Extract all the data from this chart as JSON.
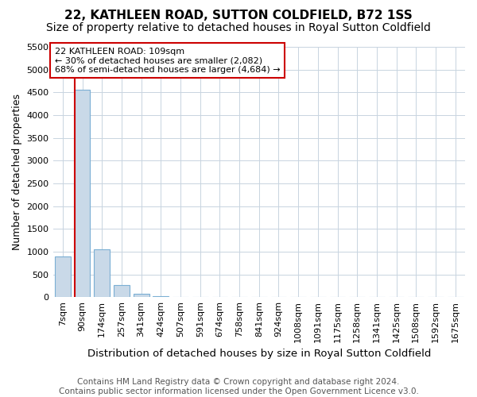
{
  "title": "22, KATHLEEN ROAD, SUTTON COLDFIELD, B72 1SS",
  "subtitle": "Size of property relative to detached houses in Royal Sutton Coldfield",
  "xlabel": "Distribution of detached houses by size in Royal Sutton Coldfield",
  "ylabel": "Number of detached properties",
  "footer_line1": "Contains HM Land Registry data © Crown copyright and database right 2024.",
  "footer_line2": "Contains public sector information licensed under the Open Government Licence v3.0.",
  "categories": [
    "7sqm",
    "90sqm",
    "174sqm",
    "257sqm",
    "341sqm",
    "424sqm",
    "507sqm",
    "591sqm",
    "674sqm",
    "758sqm",
    "841sqm",
    "924sqm",
    "1008sqm",
    "1091sqm",
    "1175sqm",
    "1258sqm",
    "1341sqm",
    "1425sqm",
    "1508sqm",
    "1592sqm",
    "1675sqm"
  ],
  "values": [
    900,
    4550,
    1050,
    270,
    70,
    30,
    10,
    0,
    0,
    0,
    0,
    0,
    0,
    0,
    0,
    0,
    0,
    0,
    0,
    0,
    0
  ],
  "bar_color": "#c9d9e8",
  "bar_edge_color": "#7bafd4",
  "ylim": [
    0,
    5500
  ],
  "yticks": [
    0,
    500,
    1000,
    1500,
    2000,
    2500,
    3000,
    3500,
    4000,
    4500,
    5000,
    5500
  ],
  "property_line_color": "#cc0000",
  "annotation_text": "22 KATHLEEN ROAD: 109sqm\n← 30% of detached houses are smaller (2,082)\n68% of semi-detached houses are larger (4,684) →",
  "annotation_box_edgecolor": "#cc0000",
  "annotation_text_color": "#000000",
  "background_color": "#ffffff",
  "grid_color": "#c8d4e0",
  "title_fontsize": 11,
  "subtitle_fontsize": 10,
  "xlabel_fontsize": 9.5,
  "ylabel_fontsize": 9,
  "tick_fontsize": 8,
  "footer_fontsize": 7.5
}
